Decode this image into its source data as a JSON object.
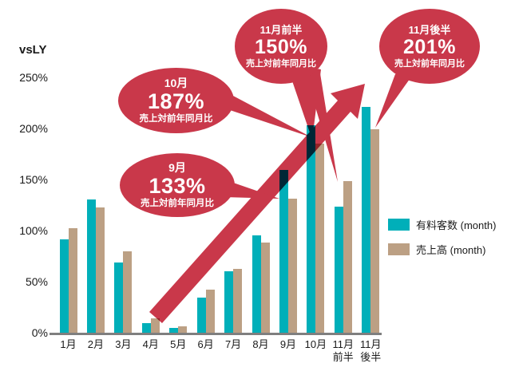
{
  "chart_data": {
    "type": "bar",
    "title": "vsLY",
    "ylabel": "vsLY",
    "ylim": [
      0,
      250
    ],
    "grid": false,
    "y_ticks": [
      {
        "label": "250%",
        "value": 250
      },
      {
        "label": "200%",
        "value": 200
      },
      {
        "label": "150%",
        "value": 150
      },
      {
        "label": "100%",
        "value": 100
      },
      {
        "label": "50%",
        "value": 50
      },
      {
        "label": "0%",
        "value": 0
      }
    ],
    "categories": [
      "1月",
      "2月",
      "3月",
      "4月",
      "5月",
      "6月",
      "7月",
      "8月",
      "9月",
      "10月",
      "11月前半",
      "11月後半"
    ],
    "x_tick_labels": [
      "1月",
      "2月",
      "3月",
      "4月",
      "5月",
      "6月",
      "7月",
      "8月",
      "9月",
      "10月",
      "11月\n前半",
      "11月\n後半"
    ],
    "series": [
      {
        "name": "有料客数 (month)",
        "color": "#00AFB9",
        "values": [
          93,
          132,
          70,
          11,
          6,
          36,
          62,
          97,
          161,
          205,
          125,
          223
        ]
      },
      {
        "name": "売上高 (month)",
        "color": "#BCA084",
        "values": [
          104,
          124,
          81,
          16,
          8,
          44,
          64,
          90,
          133,
          187,
          150,
          201
        ]
      }
    ],
    "legend_position": "right",
    "annotations": [
      {
        "month": "9月",
        "value": "133%",
        "caption": "売上対前年同月比"
      },
      {
        "month": "10月",
        "value": "187%",
        "caption": "売上対前年同月比"
      },
      {
        "month": "11月前半",
        "value": "150%",
        "caption": "売上対前年同月比"
      },
      {
        "month": "11月後半",
        "value": "201%",
        "caption": "売上対前年同月比"
      }
    ]
  },
  "colors": {
    "teal": "#00AFB9",
    "tan": "#BCA084",
    "red": "#C9384A",
    "axis_line": "#7F7F7F",
    "text": "#1A1A1A",
    "bubble_text": "#FFFFFF"
  }
}
